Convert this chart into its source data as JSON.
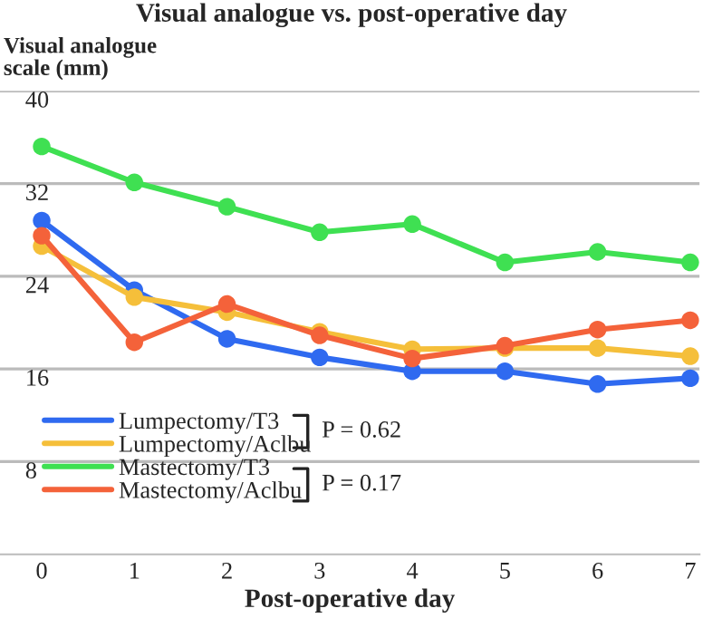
{
  "chart_data": {
    "type": "line",
    "title": "Visual analogue vs. post-operative day",
    "xlabel": "Post-operative day",
    "ylabel": "Visual analogue\nscale (mm)",
    "x": [
      0,
      1,
      2,
      3,
      4,
      5,
      6,
      7
    ],
    "series": [
      {
        "name": "Lumpectomy/T3",
        "color": "#2f6af0",
        "values": [
          28.8,
          22.8,
          18.6,
          17.0,
          15.8,
          15.8,
          14.7,
          15.2
        ]
      },
      {
        "name": "Lumpectomy/Aclbu",
        "color": "#f5bf3a",
        "values": [
          26.6,
          22.2,
          20.9,
          19.2,
          17.7,
          17.8,
          17.8,
          17.1
        ]
      },
      {
        "name": "Mastectomy/T3",
        "color": "#3fe052",
        "values": [
          35.2,
          32.1,
          30.0,
          27.8,
          28.5,
          25.2,
          26.1,
          25.2
        ]
      },
      {
        "name": "Mastectomy/Aclbu",
        "color": "#f4623a",
        "values": [
          27.5,
          18.3,
          21.6,
          18.9,
          16.9,
          18.0,
          19.4,
          20.2
        ]
      }
    ],
    "annotations": [
      "P = 0.62",
      "P = 0.17"
    ],
    "xlim": [
      -0.45,
      7.1
    ],
    "ylim": [
      0,
      40
    ],
    "xticks": [
      0,
      1,
      2,
      3,
      4,
      5,
      6,
      7
    ],
    "yticks": [
      8,
      16,
      24,
      32,
      40
    ],
    "grid": "y",
    "legend": "bottom left",
    "marker": "circle",
    "line_style": "solid"
  }
}
